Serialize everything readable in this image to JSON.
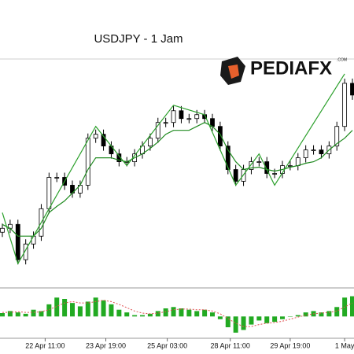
{
  "chart_data": {
    "type": "candlestick",
    "title": "USDJPY - 1 Jam",
    "logo": {
      "text": "PEDIAFX",
      "sub": ".COM"
    },
    "xlim": [
      0,
      45
    ],
    "ylim": [
      0,
      290
    ],
    "xticks": [
      {
        "value": 5.5,
        "label": "22 Apr 11:00"
      },
      {
        "value": 13.3,
        "label": "23 Apr 19:00"
      },
      {
        "value": 21.2,
        "label": "25 Apr 03:00"
      },
      {
        "value": 29.3,
        "label": "28 Apr 11:00"
      },
      {
        "value": 37,
        "label": "29 Apr 19:00"
      },
      {
        "value": 44,
        "label": "1 May"
      }
    ],
    "candles": {
      "open": [
        70,
        75,
        80,
        35,
        55,
        65,
        100,
        140,
        140,
        130,
        120,
        130,
        190,
        195,
        180,
        170,
        160,
        160,
        170,
        180,
        190,
        210,
        210,
        225,
        215,
        215,
        220,
        215,
        205,
        180,
        150,
        135,
        150,
        160,
        160,
        145,
        145,
        155,
        155,
        165,
        175,
        175,
        170,
        180,
        205,
        260
      ],
      "high": [
        81,
        86,
        86,
        61,
        71,
        106,
        146,
        146,
        146,
        136,
        136,
        196,
        201,
        201,
        186,
        176,
        166,
        176,
        186,
        196,
        216,
        216,
        231,
        231,
        221,
        226,
        226,
        221,
        211,
        186,
        156,
        156,
        166,
        166,
        166,
        151,
        161,
        161,
        171,
        181,
        181,
        181,
        186,
        211,
        266,
        266
      ],
      "low": [
        64,
        69,
        29,
        29,
        49,
        59,
        94,
        134,
        124,
        114,
        114,
        124,
        184,
        174,
        164,
        154,
        154,
        154,
        164,
        174,
        184,
        204,
        204,
        209,
        209,
        209,
        209,
        199,
        174,
        144,
        129,
        129,
        144,
        154,
        139,
        139,
        139,
        149,
        149,
        159,
        169,
        164,
        164,
        174,
        199,
        239
      ],
      "close": [
        75,
        80,
        35,
        55,
        65,
        100,
        140,
        140,
        130,
        120,
        130,
        190,
        195,
        180,
        170,
        160,
        160,
        170,
        180,
        190,
        210,
        210,
        225,
        215,
        215,
        220,
        215,
        205,
        180,
        150,
        135,
        150,
        160,
        160,
        145,
        145,
        155,
        155,
        165,
        175,
        175,
        170,
        180,
        205,
        260,
        245
      ],
      "up_color": "#ffffff",
      "down_color": "#000000",
      "edge_color": "#000000"
    },
    "ma": {
      "color": "#1f8a1f",
      "values": [
        80,
        75,
        65,
        65,
        65,
        75,
        95,
        103,
        110,
        120,
        130,
        150,
        165,
        165,
        165,
        162,
        160,
        165,
        170,
        177,
        185,
        195,
        200,
        200,
        200,
        205,
        210,
        205,
        195,
        175,
        160,
        150,
        152,
        153,
        150,
        148,
        150,
        153,
        155,
        158,
        160,
        165,
        175,
        183,
        190,
        200
      ]
    },
    "zigzag": {
      "color": "#2ca02c",
      "x": [
        0,
        2,
        12,
        16,
        22,
        26,
        30,
        33,
        35,
        44
      ],
      "values": [
        95,
        30,
        205,
        155,
        232,
        220,
        130,
        170,
        130,
        272
      ]
    },
    "macd": {
      "ylim": [
        -30,
        40
      ],
      "color": "#22aa22",
      "values": [
        5,
        8,
        6,
        4,
        10,
        8,
        18,
        28,
        26,
        20,
        15,
        22,
        28,
        24,
        18,
        10,
        6,
        2,
        2,
        4,
        8,
        12,
        14,
        12,
        10,
        8,
        10,
        6,
        -4,
        -16,
        -24,
        -20,
        -12,
        -6,
        -10,
        -8,
        -4,
        0,
        2,
        6,
        8,
        6,
        8,
        14,
        28,
        30
      ],
      "signal": {
        "color": "#e05050",
        "values": [
          6,
          6,
          7,
          6,
          6,
          7,
          10,
          15,
          20,
          22,
          20,
          20,
          22,
          24,
          22,
          18,
          13,
          8,
          5,
          4,
          5,
          7,
          10,
          11,
          11,
          10,
          10,
          8,
          4,
          -3,
          -10,
          -15,
          -15,
          -12,
          -10,
          -9,
          -7,
          -4,
          -1,
          2,
          4,
          5,
          6,
          8,
          14,
          20
        ]
      }
    }
  }
}
